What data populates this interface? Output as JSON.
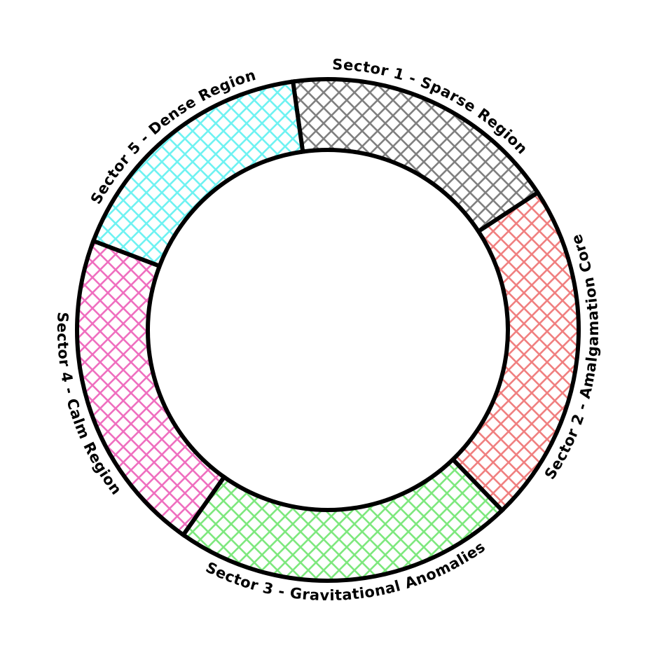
{
  "chart_data": {
    "type": "pie",
    "subtype": "donut",
    "categories": [
      "Sector 1 - Sparse Region",
      "Sector 2 - Amalgamation Core",
      "Sector 3 - Gravitational Anomalies",
      "Sector 4 - Calm Region",
      "Sector 5 - Dense Region"
    ],
    "values": [
      18,
      22,
      22,
      21,
      17
    ],
    "colors": [
      "#808080",
      "#f08080",
      "#7ee87e",
      "#ef6fbf",
      "#6ff2f2"
    ],
    "start_angle_deg": -8,
    "direction": "clockwise",
    "pattern": "crosshatch",
    "labels_curved_outside": true,
    "title": "",
    "legend": "none"
  }
}
